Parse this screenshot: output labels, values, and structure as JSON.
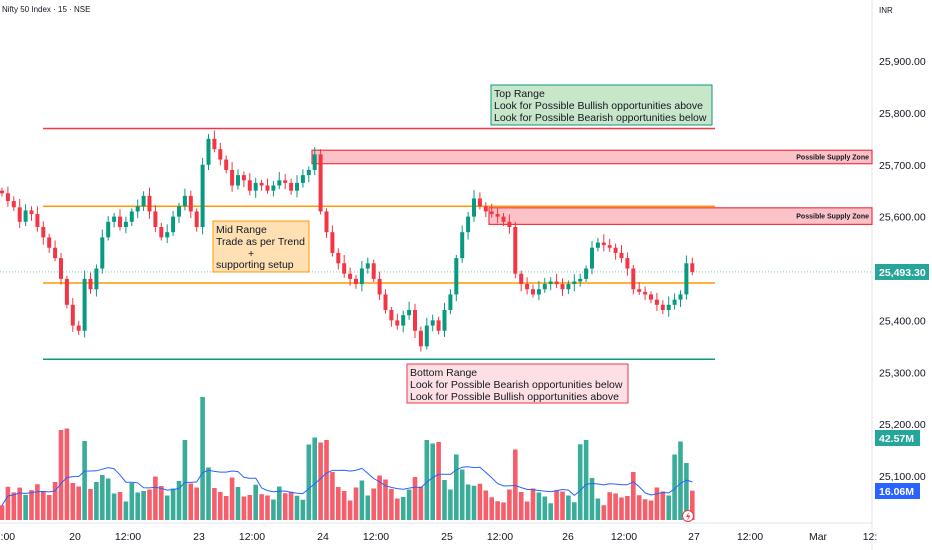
{
  "header": {
    "title": "Nifty 50 Index · 15 · NSE",
    "currency": "INR"
  },
  "chart_data": {
    "type": "candlestick",
    "symbol": "Nifty 50 Index",
    "interval": "15",
    "exchange": "NSE",
    "currency": "INR",
    "y_ticks": [
      "25,900.00",
      "25,800.00",
      "25,700.00",
      "25,600.00",
      "25,400.00",
      "25,300.00",
      "25,200.00",
      "25,100.00"
    ],
    "y_tick_values": [
      25900,
      25800,
      25700,
      25600,
      25400,
      25300,
      25200,
      25100
    ],
    "x_ticks": [
      "12:00",
      "20",
      "12:00",
      "23",
      "12:00",
      "24",
      "12:00",
      "25",
      "12:00",
      "26",
      "12:00",
      "27",
      "12:00",
      "Mar",
      "12:"
    ],
    "last_price": {
      "label": "25,493.30",
      "value": 25493.3,
      "color": "#26a69a"
    },
    "volume_badges": [
      {
        "label": "42.57M",
        "color": "#26a69a"
      },
      {
        "label": "16.06M",
        "color": "#2962ff"
      }
    ],
    "levels": [
      {
        "name": "Top Range",
        "value": 25770,
        "color": "#f23645"
      },
      {
        "name": "Mid Range upper",
        "value": 25620,
        "color": "#ff9800"
      },
      {
        "name": "Mid Range lower",
        "value": 25472,
        "color": "#ff9800"
      },
      {
        "name": "Bottom Range",
        "value": 25325,
        "color": "#089981"
      }
    ],
    "zones": [
      {
        "label": "Possible Supply Zone",
        "top": 25728,
        "bottom": 25702,
        "color": "#f23645"
      },
      {
        "label": "Possible Supply Zone",
        "top": 25617,
        "bottom": 25585,
        "color": "#f23645"
      }
    ],
    "annotations": [
      {
        "title": "Top Range",
        "lines": [
          "Look for Possible Bullish opportunities above",
          "Look for Possible Bearish opportunities below"
        ],
        "color": "#089981"
      },
      {
        "title": "Mid Range",
        "lines": [
          "Trade as per Trend",
          "+",
          "supporting setup"
        ],
        "color": "#ff9800"
      },
      {
        "title": "Bottom Range",
        "lines": [
          "Look for Possible Bearish opportunities below",
          "Look for Possible Bullish opportunities above"
        ],
        "color": "#f23645"
      }
    ],
    "colors": {
      "up": "#089981",
      "down": "#f23645",
      "volume_ma": "#2962ff"
    },
    "close": [
      25645,
      25630,
      25618,
      25590,
      25612,
      25605,
      25580,
      25560,
      25540,
      25520,
      25480,
      25430,
      25390,
      25380,
      25480,
      25460,
      25500,
      25560,
      25590,
      25600,
      25580,
      25590,
      25610,
      25620,
      25640,
      25610,
      25580,
      25560,
      25570,
      25600,
      25620,
      25640,
      25610,
      25580,
      25700,
      25750,
      25730,
      25710,
      25690,
      25660,
      25680,
      25670,
      25650,
      25665,
      25660,
      25650,
      25660,
      25670,
      25665,
      25650,
      25665,
      25680,
      25690,
      25720,
      25610,
      25570,
      25530,
      25510,
      25490,
      25480,
      25470,
      25500,
      25510,
      25480,
      25450,
      25420,
      25400,
      25390,
      25410,
      25420,
      25380,
      25350,
      25390,
      25400,
      25380,
      25420,
      25450,
      25520,
      25570,
      25600,
      25635,
      25620,
      25610,
      25605,
      25600,
      25590,
      25580,
      25490,
      25470,
      25460,
      25450,
      25460,
      25470,
      25475,
      25470,
      25460,
      25470,
      25475,
      25480,
      25500,
      25540,
      25550,
      25545,
      25540,
      25530,
      25520,
      25500,
      25460,
      25455,
      25450,
      25440,
      25430,
      25420,
      25430,
      25440,
      25450,
      25510,
      25493
    ]
  }
}
